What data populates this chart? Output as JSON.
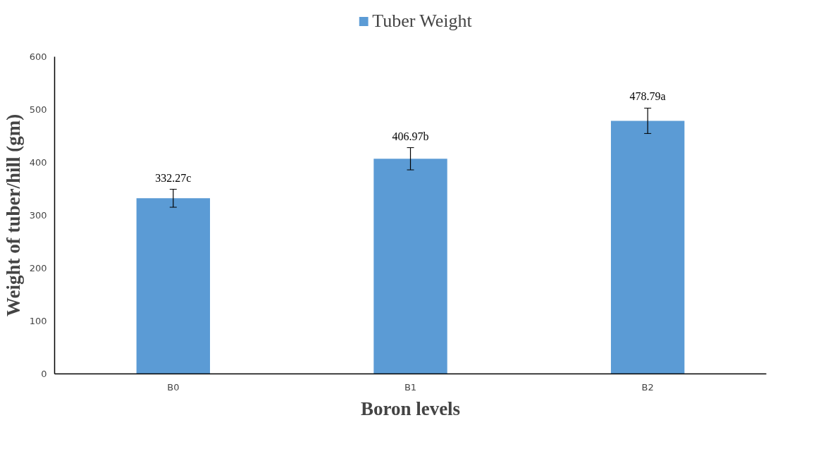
{
  "chart_data": {
    "type": "bar",
    "xlabel": "Boron levels",
    "ylabel": "Weight of tuber/hill (gm)",
    "categories": [
      "B0",
      "B1",
      "B2"
    ],
    "series": [
      {
        "name": "Tuber Weight",
        "color": "#5b9bd5",
        "values": [
          332.27,
          406.97,
          478.79
        ],
        "errors": [
          17,
          21,
          24
        ],
        "value_labels": [
          "332.27c",
          "406.97b",
          "478.79a"
        ]
      }
    ],
    "ylim": [
      0,
      600
    ],
    "yticks": [
      0,
      100,
      200,
      300,
      400,
      500,
      600
    ],
    "grid": false,
    "legend": "top"
  }
}
